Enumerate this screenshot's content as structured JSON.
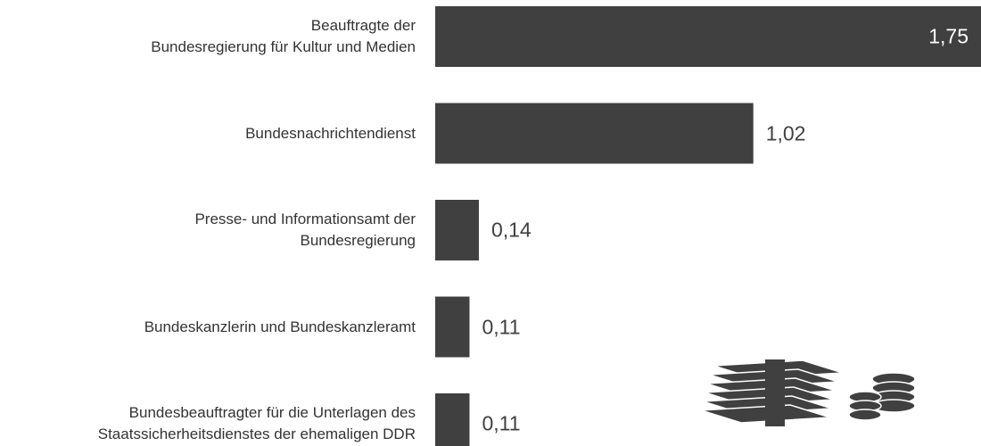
{
  "chart_data": {
    "type": "bar",
    "orientation": "horizontal",
    "categories": [
      "Beauftragte der\nBundesregierung für Kultur und Medien",
      "Bundesnachrichtendienst",
      "Presse- und Informationsamt der\nBundesregierung",
      "Bundeskanzlerin und Bundeskanzleramt",
      "Bundesbeauftragter für die Unterlagen des\nStaatssicherheitsdienstes der ehemaligen DDR"
    ],
    "values": [
      1.75,
      1.02,
      0.14,
      0.11,
      0.11
    ],
    "value_labels": [
      "1,75",
      "1,02",
      "0,14",
      "0,11",
      "0,11"
    ],
    "color": "#404040",
    "xlim": [
      0,
      1.75
    ]
  }
}
